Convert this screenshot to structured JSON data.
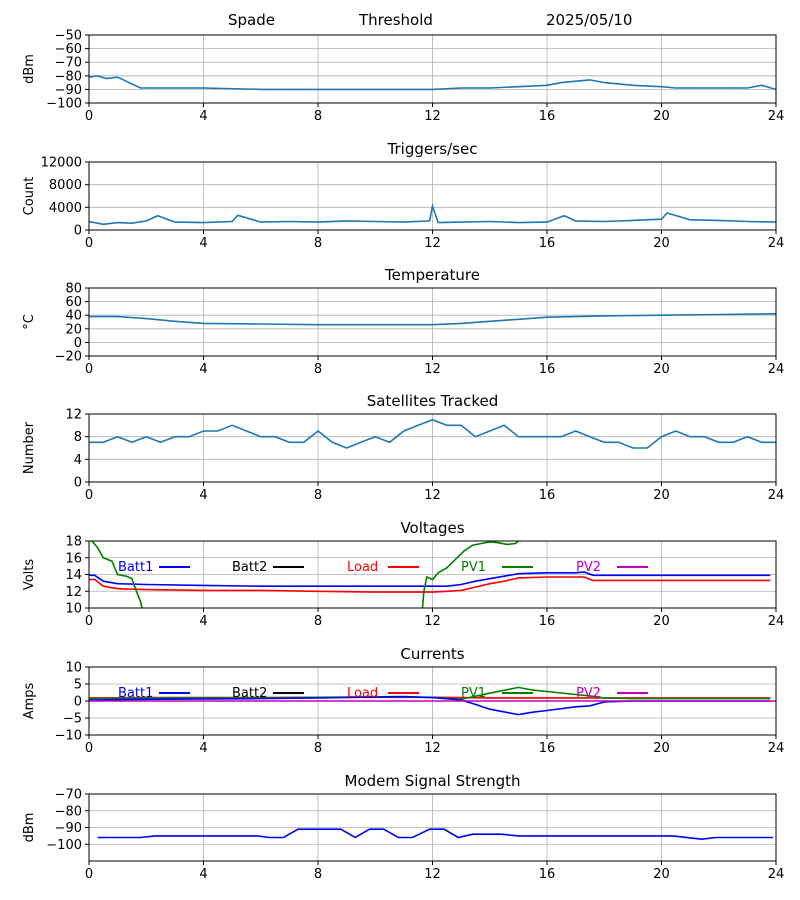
{
  "header": {
    "site": "Spade",
    "mode": "Threshold",
    "date": "2025/05/10"
  },
  "colors": {
    "grid": "#b0b0b0",
    "default_line": "#1f77b4"
  },
  "chart_data": [
    {
      "id": "signal",
      "type": "line",
      "title": "",
      "ylabel": "dBm",
      "xlim": [
        0,
        24
      ],
      "xticks": [
        0,
        4,
        8,
        12,
        16,
        20,
        24
      ],
      "ylim": [
        -100,
        -50
      ],
      "yticks": [
        -100,
        -90,
        -80,
        -70,
        -60,
        -50
      ],
      "grid": true,
      "series": [
        {
          "color": "#1f77b4",
          "x": [
            0,
            0.3,
            0.6,
            1.0,
            1.3,
            1.8,
            2.5,
            4,
            6,
            8,
            10,
            12,
            13,
            14,
            15,
            16,
            16.5,
            17,
            17.5,
            18,
            19,
            20,
            20.5,
            21,
            22,
            23,
            23.5,
            24
          ],
          "y": [
            -81,
            -80,
            -82,
            -81,
            -84,
            -89,
            -89,
            -89,
            -90,
            -90,
            -90,
            -90,
            -89,
            -89,
            -88,
            -87,
            -85,
            -84,
            -83,
            -85,
            -87,
            -88,
            -89,
            -89,
            -89,
            -89,
            -87,
            -90
          ]
        }
      ]
    },
    {
      "id": "triggers",
      "type": "line",
      "title": "Triggers/sec",
      "ylabel": "Count",
      "xlim": [
        0,
        24
      ],
      "xticks": [
        0,
        4,
        8,
        12,
        16,
        20,
        24
      ],
      "ylim": [
        0,
        12000
      ],
      "yticks": [
        0,
        4000,
        8000,
        12000
      ],
      "grid": true,
      "series": [
        {
          "color": "#1f77b4",
          "x": [
            0,
            0.5,
            1,
            1.5,
            2,
            2.4,
            3,
            4,
            5,
            5.2,
            6,
            7,
            8,
            9,
            10,
            11,
            11.9,
            12,
            12.2,
            13,
            14,
            15,
            16,
            16.6,
            17,
            18,
            19,
            20,
            20.2,
            21,
            22,
            23,
            24
          ],
          "y": [
            1500,
            1000,
            1300,
            1200,
            1600,
            2500,
            1400,
            1300,
            1500,
            2600,
            1400,
            1500,
            1400,
            1600,
            1500,
            1400,
            1600,
            4200,
            1300,
            1400,
            1500,
            1300,
            1400,
            2500,
            1600,
            1500,
            1700,
            1900,
            3000,
            1800,
            1700,
            1500,
            1400
          ]
        }
      ]
    },
    {
      "id": "temperature",
      "type": "line",
      "title": "Temperature",
      "ylabel": "°C",
      "xlim": [
        0,
        24
      ],
      "xticks": [
        0,
        4,
        8,
        12,
        16,
        20,
        24
      ],
      "ylim": [
        -20,
        80
      ],
      "yticks": [
        -20,
        0,
        20,
        40,
        60,
        80
      ],
      "grid": true,
      "series": [
        {
          "color": "#1f77b4",
          "x": [
            0,
            1,
            2,
            3,
            4,
            6,
            8,
            10,
            12,
            13,
            14,
            15,
            16,
            18,
            20,
            22,
            24
          ],
          "y": [
            38,
            38,
            35,
            31,
            28,
            27,
            26,
            26,
            26,
            28,
            31,
            34,
            37,
            39,
            40,
            41,
            42
          ]
        }
      ]
    },
    {
      "id": "satellites",
      "type": "line",
      "title": "Satellites Tracked",
      "ylabel": "Number",
      "xlim": [
        0,
        24
      ],
      "xticks": [
        0,
        4,
        8,
        12,
        16,
        20,
        24
      ],
      "ylim": [
        0,
        12
      ],
      "yticks": [
        0,
        4,
        8,
        12
      ],
      "grid": true,
      "series": [
        {
          "color": "#1f77b4",
          "x": [
            0,
            0.5,
            1,
            1.5,
            2,
            2.5,
            3,
            3.5,
            4,
            4.5,
            5,
            5.5,
            6,
            6.5,
            7,
            7.5,
            8,
            8.5,
            9,
            9.5,
            10,
            10.5,
            11,
            11.5,
            12,
            12.5,
            13,
            13.5,
            14,
            14.5,
            15,
            15.5,
            16,
            16.5,
            17,
            17.5,
            18,
            18.5,
            19,
            19.5,
            20,
            20.5,
            21,
            21.5,
            22,
            22.5,
            23,
            23.5,
            24
          ],
          "y": [
            7,
            7,
            8,
            7,
            8,
            7,
            8,
            8,
            9,
            9,
            10,
            9,
            8,
            8,
            7,
            7,
            9,
            7,
            6,
            7,
            8,
            7,
            9,
            10,
            11,
            10,
            10,
            8,
            9,
            10,
            8,
            8,
            8,
            8,
            9,
            8,
            7,
            7,
            6,
            6,
            8,
            9,
            8,
            8,
            7,
            7,
            8,
            7,
            7
          ]
        }
      ]
    },
    {
      "id": "voltages",
      "type": "line",
      "title": "Voltages",
      "ylabel": "Volts",
      "xlim": [
        0,
        24
      ],
      "xticks": [
        0,
        4,
        8,
        12,
        16,
        20,
        24
      ],
      "ylim": [
        10,
        18
      ],
      "yticks": [
        10,
        12,
        14,
        16,
        18
      ],
      "grid": true,
      "legend": [
        "Batt1",
        "Batt2",
        "Load",
        "PV1",
        "PV2"
      ],
      "series": [
        {
          "name": "Batt1",
          "color": "#0000ff",
          "x": [
            0,
            0.2,
            0.5,
            1,
            2,
            4,
            6,
            8,
            10,
            12,
            12.5,
            13,
            13.5,
            14,
            14.5,
            15,
            16,
            17,
            17.3,
            17.6,
            18,
            20,
            22,
            23.8
          ],
          "y": [
            13.9,
            13.9,
            13.2,
            12.9,
            12.8,
            12.7,
            12.6,
            12.6,
            12.6,
            12.6,
            12.6,
            12.8,
            13.2,
            13.5,
            13.8,
            14.1,
            14.2,
            14.2,
            14.3,
            13.9,
            13.9,
            13.9,
            13.9,
            13.9
          ]
        },
        {
          "name": "Load",
          "color": "#ff0000",
          "x": [
            0,
            0.2,
            0.5,
            1,
            2,
            4,
            6,
            8,
            10,
            12,
            12.5,
            13,
            13.5,
            14,
            14.5,
            15,
            16,
            17,
            17.3,
            17.6,
            18,
            20,
            22,
            23.8
          ],
          "y": [
            13.4,
            13.4,
            12.6,
            12.3,
            12.2,
            12.1,
            12.1,
            12.0,
            11.9,
            11.9,
            12.0,
            12.1,
            12.5,
            12.9,
            13.2,
            13.6,
            13.7,
            13.7,
            13.7,
            13.3,
            13.3,
            13.3,
            13.3,
            13.3
          ]
        },
        {
          "name": "PV1",
          "color": "#008000",
          "x": [
            0.1,
            0.3,
            0.5,
            0.8,
            1.0,
            1.3,
            1.5,
            1.6,
            1.7,
            1.8,
            1.85
          ],
          "y": [
            18,
            17.2,
            16,
            15.6,
            14.0,
            13.8,
            13.5,
            12.5,
            11.6,
            10.8,
            10
          ]
        },
        {
          "name": "PV1",
          "color": "#008000",
          "x": [
            11.65,
            11.7,
            11.8,
            12.0,
            12.2,
            12.5,
            12.8,
            13.1,
            13.4,
            13.7,
            14.0,
            14.3,
            14.6,
            14.9,
            15.0
          ],
          "y": [
            10,
            12.0,
            13.7,
            13.4,
            14.2,
            14.8,
            15.8,
            16.8,
            17.5,
            17.7,
            17.9,
            17.8,
            17.6,
            17.7,
            18
          ]
        }
      ]
    },
    {
      "id": "currents",
      "type": "line",
      "title": "Currents",
      "ylabel": "Amps",
      "xlim": [
        0,
        24
      ],
      "xticks": [
        0,
        4,
        8,
        12,
        16,
        20,
        24
      ],
      "ylim": [
        -10,
        10
      ],
      "yticks": [
        -10,
        -5,
        0,
        5,
        10
      ],
      "grid": true,
      "legend": [
        "Batt1",
        "Batt2",
        "Load",
        "PV1",
        "PV2"
      ],
      "series": [
        {
          "name": "Load",
          "color": "#ff0000",
          "x": [
            0,
            2,
            4,
            6,
            8,
            10,
            12,
            13,
            14,
            16,
            18,
            20,
            22,
            23.8
          ],
          "y": [
            0.9,
            1.0,
            1.0,
            1.0,
            1.1,
            1.1,
            1.1,
            1.0,
            0.9,
            0.9,
            0.9,
            0.9,
            0.9,
            0.9
          ]
        },
        {
          "name": "PV1",
          "color": "#008000",
          "x": [
            0,
            2,
            4,
            6,
            8,
            10,
            12,
            13,
            14,
            15,
            15.5,
            16,
            17,
            17.5,
            18,
            19,
            20,
            22,
            23.8
          ],
          "y": [
            0.7,
            0.9,
            0.9,
            0.9,
            1.1,
            1.2,
            1.1,
            0.5,
            2.3,
            4.0,
            3.2,
            2.8,
            1.9,
            1.5,
            0.9,
            0.7,
            0.7,
            0.7,
            0.7
          ]
        },
        {
          "name": "Batt1",
          "color": "#0000ff",
          "x": [
            0,
            2,
            4,
            6,
            8,
            10,
            11,
            12,
            13,
            13.5,
            14,
            15,
            15.5,
            16,
            17,
            17.5,
            18,
            19,
            20,
            22,
            23.8
          ],
          "y": [
            0.3,
            0.5,
            0.6,
            0.7,
            0.9,
            1.2,
            1.3,
            1.0,
            0.3,
            -1.0,
            -2.4,
            -4.0,
            -3.3,
            -2.8,
            -1.7,
            -1.4,
            -0.3,
            0,
            0,
            0,
            0
          ]
        },
        {
          "name": "PV2",
          "color": "#c000c0",
          "x": [
            0,
            24
          ],
          "y": [
            0,
            0
          ]
        }
      ]
    },
    {
      "id": "modem",
      "type": "line",
      "title": "Modem Signal Strength",
      "ylabel": "dBm",
      "xlim": [
        0,
        24
      ],
      "xticks": [
        0,
        4,
        8,
        12,
        16,
        20,
        24
      ],
      "ylim": [
        -110,
        -70
      ],
      "yticks": [
        -100,
        -90,
        -80,
        -70
      ],
      "grid": true,
      "series": [
        {
          "color": "#0000ff",
          "x": [
            0.3,
            1,
            1.8,
            2.3,
            3,
            4,
            5,
            5.9,
            6.3,
            6.8,
            7.3,
            8.0,
            8.8,
            9.3,
            9.8,
            10.3,
            10.8,
            11.3,
            11.9,
            12.4,
            12.9,
            13.4,
            13.9,
            14.4,
            15,
            16,
            17,
            18,
            19,
            20,
            20.4,
            21.4,
            21.9,
            22.4,
            23,
            23.9
          ],
          "y": [
            -96,
            -96,
            -96,
            -95,
            -95,
            -95,
            -95,
            -95,
            -96,
            -96,
            -91,
            -91,
            -91,
            -96,
            -91,
            -91,
            -96,
            -96,
            -91,
            -91,
            -96,
            -94,
            -94,
            -94,
            -95,
            -95,
            -95,
            -95,
            -95,
            -95,
            -95,
            -97,
            -96,
            -96,
            -96,
            -96
          ]
        }
      ]
    }
  ]
}
